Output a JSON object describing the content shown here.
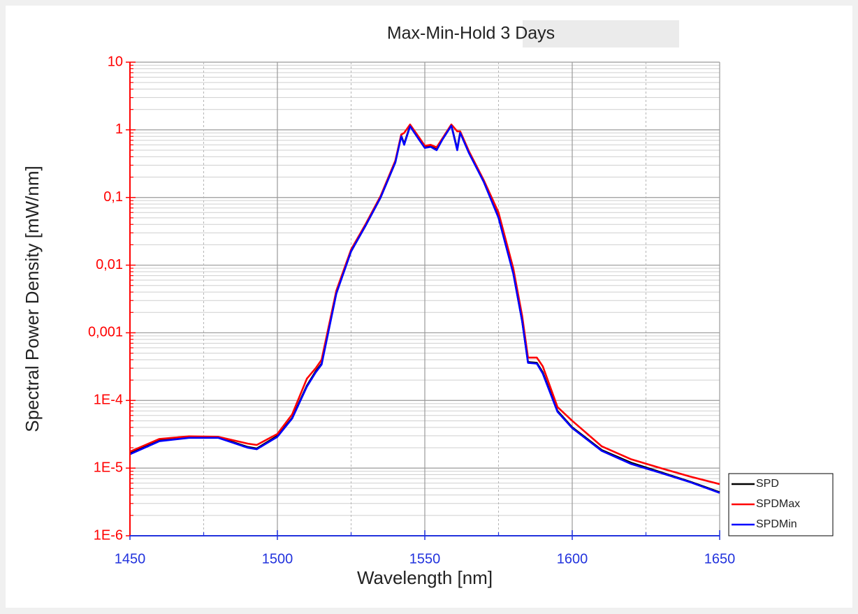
{
  "chart_data": {
    "type": "line",
    "title": "Max-Min-Hold 3 Days",
    "xlabel": "Wavelength [nm]",
    "ylabel": "Spectral Power Density [mW/nm]",
    "log_y": true,
    "grid": true,
    "legend": "lower right",
    "xlim": [
      1450,
      1650
    ],
    "xticks": [
      1450,
      1500,
      1550,
      1600,
      1650
    ],
    "xminorticks": [
      1475,
      1525,
      1575,
      1625
    ],
    "ylim": [
      1e-06,
      10
    ],
    "yticks": [
      {
        "value": 1e-06,
        "label": "1E-6"
      },
      {
        "value": 1e-05,
        "label": "1E-5"
      },
      {
        "value": 0.0001,
        "label": "1E-4"
      },
      {
        "value": 0.001,
        "label": "0,001"
      },
      {
        "value": 0.01,
        "label": "0,01"
      },
      {
        "value": 0.1,
        "label": "0,1"
      },
      1,
      10
    ],
    "x": [
      1450,
      1460,
      1470,
      1480,
      1490,
      1493,
      1500,
      1505,
      1510,
      1513,
      1515,
      1520,
      1525,
      1530,
      1535,
      1540,
      1542,
      1543,
      1545,
      1548,
      1550,
      1552,
      1554,
      1556,
      1559,
      1561,
      1562,
      1565,
      1570,
      1575,
      1580,
      1583,
      1585,
      1588,
      1590,
      1595,
      1600,
      1610,
      1620,
      1630,
      1640,
      1650
    ],
    "series": [
      {
        "name": "SPD",
        "color": "#000000",
        "values": [
          1.65e-05,
          2.6e-05,
          2.9e-05,
          2.85e-05,
          2.05e-05,
          1.95e-05,
          3e-05,
          5.5e-05,
          0.000165,
          0.00027,
          0.00035,
          0.0039,
          0.016,
          0.039,
          0.1,
          0.33,
          0.82,
          0.62,
          1.15,
          0.73,
          0.55,
          0.57,
          0.51,
          0.73,
          1.17,
          0.52,
          0.92,
          0.46,
          0.17,
          0.051,
          0.0077,
          0.0015,
          0.00037,
          0.00036,
          0.00026,
          7e-05,
          4e-05,
          1.85e-05,
          1.2e-05,
          8.7e-06,
          6.3e-06,
          4.4e-06
        ]
      },
      {
        "name": "SPDMax",
        "color": "#ff0000",
        "values": [
          1.75e-05,
          2.7e-05,
          2.95e-05,
          2.9e-05,
          2.3e-05,
          2.2e-05,
          3.2e-05,
          6.2e-05,
          0.00021,
          0.0003,
          0.0004,
          0.0042,
          0.017,
          0.041,
          0.105,
          0.35,
          0.85,
          0.9,
          1.2,
          0.78,
          0.58,
          0.6,
          0.55,
          0.75,
          1.2,
          0.95,
          0.95,
          0.48,
          0.18,
          0.06,
          0.009,
          0.0018,
          0.00043,
          0.00043,
          0.00032,
          8e-05,
          5e-05,
          2.1e-05,
          1.35e-05,
          1e-05,
          7.5e-06,
          5.8e-06
        ]
      },
      {
        "name": "SPDMin",
        "color": "#0000ff",
        "values": [
          1.6e-05,
          2.5e-05,
          2.8e-05,
          2.8e-05,
          2e-05,
          1.9e-05,
          2.9e-05,
          5.4e-05,
          0.00016,
          0.00026,
          0.00034,
          0.0038,
          0.016,
          0.039,
          0.1,
          0.33,
          0.8,
          0.6,
          1.13,
          0.72,
          0.54,
          0.56,
          0.5,
          0.72,
          1.15,
          0.5,
          0.9,
          0.45,
          0.17,
          0.05,
          0.0075,
          0.0015,
          0.00036,
          0.00035,
          0.00025,
          6.8e-05,
          3.9e-05,
          1.8e-05,
          1.15e-05,
          8.5e-06,
          6.2e-06,
          4.3e-06
        ]
      }
    ],
    "ytick_color": "#ff0000",
    "xtick_color": "#2233dd"
  }
}
